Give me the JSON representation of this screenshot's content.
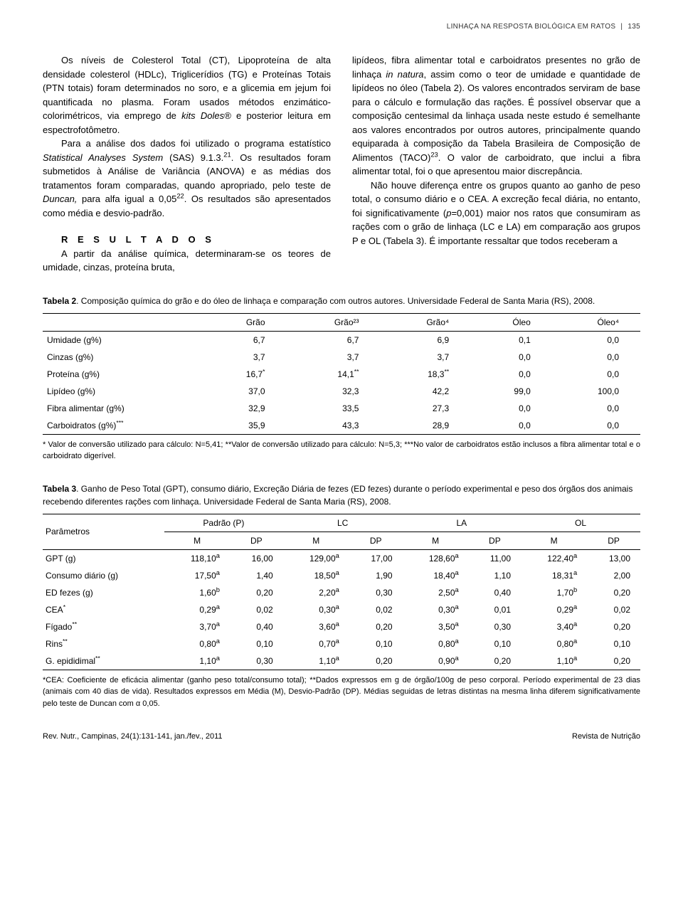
{
  "running_head": {
    "title": "LINHAÇA NA RESPOSTA BIOLÓGICA EM RATOS",
    "page": "135"
  },
  "body": {
    "p1a": "Os níveis de Colesterol Total (CT), Lipopro­teína de alta densidade colesterol (HDLc), Triglicerídios (TG) e Proteínas Totais (PTN totais) foram determinados no soro, e a glicemia em jejum foi quantificada no plasma. Foram usados métodos enzimático-colorimétricos, via emprego de ",
    "p1b": " e posterior leitura em espectrofotômetro.",
    "kits": "kits Doles®",
    "p2a": "Para a análise dos dados foi utilizado o programa estatístico ",
    "sas": "Statistical Analyses System",
    "p2b": " (SAS) 9.1.3.",
    "ref21": "21",
    "p2c": ". Os resultados foram submetidos à Análise de Variância (ANOVA) e as médias dos tratamentos foram comparadas, quando apropriado, pelo teste de ",
    "duncan": "Duncan,",
    "p2d": " para alfa igual a 0,05",
    "ref22": "22",
    "p2e": ". Os resultados são apresentados como média e desvio-padrão.",
    "results_head": "R E S U L T A D O S",
    "p3": "A partir da análise química, determinaram­-se os teores de umidade, cinzas, proteína bruta,",
    "p4a": "lipídeos, fibra alimentar total e carboidratos presentes no grão de linhaça ",
    "innatura": "in natura",
    "p4b": ", assim como o teor de umidade e quantidade de lipídeos no óleo (Tabela 2). Os valores encontrados serviram de base para o cálculo e formulação das rações. É possível observar que a composição centesimal da linhaça usada neste estudo é semelhante aos valores encontrados por outros autores, principalmente quando equiparada à composição da Tabela Brasileira de Composição de Alimentos (TACO)",
    "ref23": "23",
    "p4c": ". O valor de carboidrato, que inclui a fibra alimentar total, foi o que apresentou maior discrepância.",
    "p5a": "Não houve diferença entre os grupos quanto ao ganho de peso total, o consumo diário e o CEA. A excreção fecal diária, no entanto, foi significativamente (",
    "pval": "p",
    "p5b": "=0,001) maior nos ratos que consumiram as rações com o grão de linhaça (LC e LA) em comparação aos grupos P e OL (Tabela 3). É importante ressaltar que todos receberam a"
  },
  "table2": {
    "caption_label": "Tabela 2",
    "caption_text": ". Composição química do grão e do óleo de linhaça e comparação com outros autores. Universidade Federal de Santa Maria (RS), 2008.",
    "cols": [
      "",
      "Grão",
      "Grão²³",
      "Grão⁴",
      "Óleo",
      "Óleo⁴"
    ],
    "rows": [
      {
        "label": "Umidade (g%)",
        "v": [
          "6,7",
          "6,7",
          "6,9",
          "0,1",
          "0,0"
        ],
        "sup": [
          "",
          "",
          "",
          "",
          ""
        ]
      },
      {
        "label": "Cinzas (g%)",
        "v": [
          "3,7",
          "3,7",
          "3,7",
          "0,0",
          "0,0"
        ],
        "sup": [
          "",
          "",
          "",
          "",
          ""
        ]
      },
      {
        "label": "Proteína (g%)",
        "v": [
          "16,7",
          "14,1",
          "18,3",
          "0,0",
          "0,0"
        ],
        "sup": [
          "*",
          "**",
          "**",
          "",
          ""
        ]
      },
      {
        "label": "Lipídeo (g%)",
        "v": [
          "37,0",
          "32,3",
          "42,2",
          "99,0",
          "100,0"
        ],
        "sup": [
          "",
          "",
          "",
          "",
          ""
        ]
      },
      {
        "label": "Fibra alimentar (g%)",
        "v": [
          "32,9",
          "33,5",
          "27,3",
          "0,0",
          "0,0"
        ],
        "sup": [
          "",
          "",
          "",
          "",
          ""
        ]
      },
      {
        "label": "Carboidratos (g%)",
        "label_sup": "***",
        "v": [
          "35,9",
          "43,3",
          "28,9",
          "0,0",
          "0,0"
        ],
        "sup": [
          "",
          "",
          "",
          "",
          ""
        ]
      }
    ],
    "footnote": "* Valor de conversão utilizado para cálculo: N=5,41; **Valor de conversão utilizado para cálculo: N=5,3; ***No valor de carboidratos estão inclusos a fibra alimentar total e o carboidrato digerível."
  },
  "table3": {
    "caption_label": "Tabela 3",
    "caption_text": ". Ganho de Peso Total (GPT), consumo diário, Excreção Diária de fezes (ED fezes) durante o período experimental e peso dos órgãos dos animais recebendo diferentes rações com linhaça. Universidade Federal de Santa Maria (RS), 2008.",
    "param_head": "Parâmetros",
    "groups": [
      "Padrão (P)",
      "LC",
      "LA",
      "OL"
    ],
    "subcols": [
      "M",
      "DP"
    ],
    "rows": [
      {
        "label": "GPT (g)",
        "sup": "",
        "vals": [
          [
            "118,10",
            "a",
            "16,00"
          ],
          [
            "129,00",
            "a",
            "17,00"
          ],
          [
            "128,60",
            "a",
            "11,00"
          ],
          [
            "122,40",
            "a",
            "13,00"
          ]
        ]
      },
      {
        "label": "Consumo diário (g)",
        "sup": "",
        "vals": [
          [
            "17,50",
            "a",
            "1,40"
          ],
          [
            "18,50",
            "a",
            "1,90"
          ],
          [
            "18,40",
            "a",
            "1,10"
          ],
          [
            "18,31",
            "a",
            "2,00"
          ]
        ]
      },
      {
        "label": "ED fezes (g)",
        "sup": "",
        "vals": [
          [
            "1,60",
            "b",
            "0,20"
          ],
          [
            "2,20",
            "a",
            "0,30"
          ],
          [
            "2,50",
            "a",
            "0,40"
          ],
          [
            "1,70",
            "b",
            "0,20"
          ]
        ]
      },
      {
        "label": "CEA",
        "sup": "*",
        "vals": [
          [
            "0,29",
            "a",
            "0,02"
          ],
          [
            "0,30",
            "a",
            "0,02"
          ],
          [
            "0,30",
            "a",
            "0,01"
          ],
          [
            "0,29",
            "a",
            "0,02"
          ]
        ]
      },
      {
        "label": "Fígado",
        "sup": "**",
        "vals": [
          [
            "3,70",
            "a",
            "0,40"
          ],
          [
            "3,60",
            "a",
            "0,20"
          ],
          [
            "3,50",
            "a",
            "0,30"
          ],
          [
            "3,40",
            "a",
            "0,20"
          ]
        ]
      },
      {
        "label": "Rins",
        "sup": "**",
        "vals": [
          [
            "0,80",
            "a",
            "0,10"
          ],
          [
            "0,70",
            "a",
            "0,10"
          ],
          [
            "0,80",
            "a",
            "0,10"
          ],
          [
            "0,80",
            "a",
            "0,10"
          ]
        ]
      },
      {
        "label": "G. epididimal",
        "sup": "**",
        "vals": [
          [
            "1,10",
            "a",
            "0,30"
          ],
          [
            "1,10",
            "a",
            "0,20"
          ],
          [
            "0,90",
            "a",
            "0,20"
          ],
          [
            "1,10",
            "a",
            "0,20"
          ]
        ]
      }
    ],
    "footnote": "*CEA: Coeficiente de eficácia alimentar (ganho peso total/consumo total); **Dados expressos em g de órgão/100g de peso corporal. Período experimental de 23 dias (animais com 40 dias de vida). Resultados expressos em Média (M), Desvio-Padrão (DP). Médias seguidas de letras distintas na mesma linha diferem significativamente pelo teste de Duncan com α 0,05."
  },
  "footer": {
    "citation": "Rev. Nutr., Campinas, 24(1):131-141, jan./fev., 2011",
    "journal": "Revista de Nutrição"
  }
}
